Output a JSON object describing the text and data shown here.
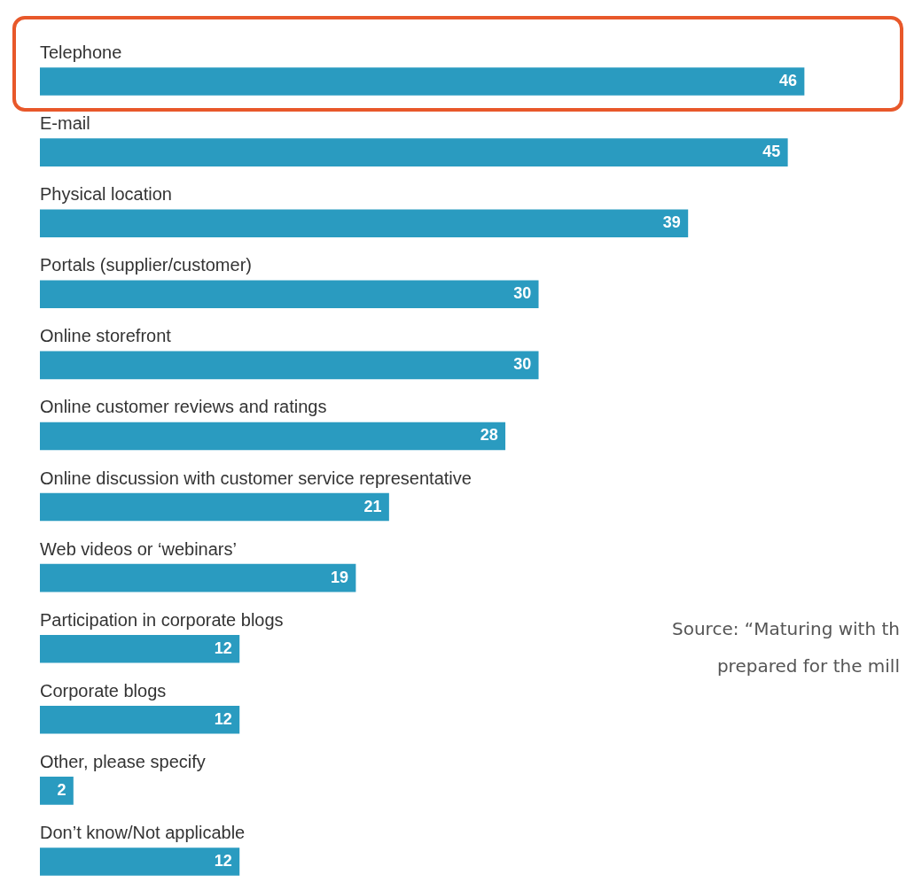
{
  "chart_data": {
    "type": "bar",
    "orientation": "horizontal",
    "categories": [
      "Telephone",
      "E-mail",
      "Physical location",
      "Portals (supplier/customer)",
      "Online storefront",
      "Online customer reviews and ratings",
      "Online discussion with customer service representative",
      "Web videos or ‘webinars’",
      "Participation in corporate blogs",
      "Corporate blogs",
      "Other, please specify",
      "Don’t know/Not applicable"
    ],
    "values": [
      46,
      45,
      39,
      30,
      30,
      28,
      21,
      19,
      12,
      12,
      2,
      12
    ],
    "color": "#2a9bc0",
    "data_labels": true,
    "annotations": [
      "Source: “Maturing with th",
      "prepared for the mill"
    ]
  }
}
